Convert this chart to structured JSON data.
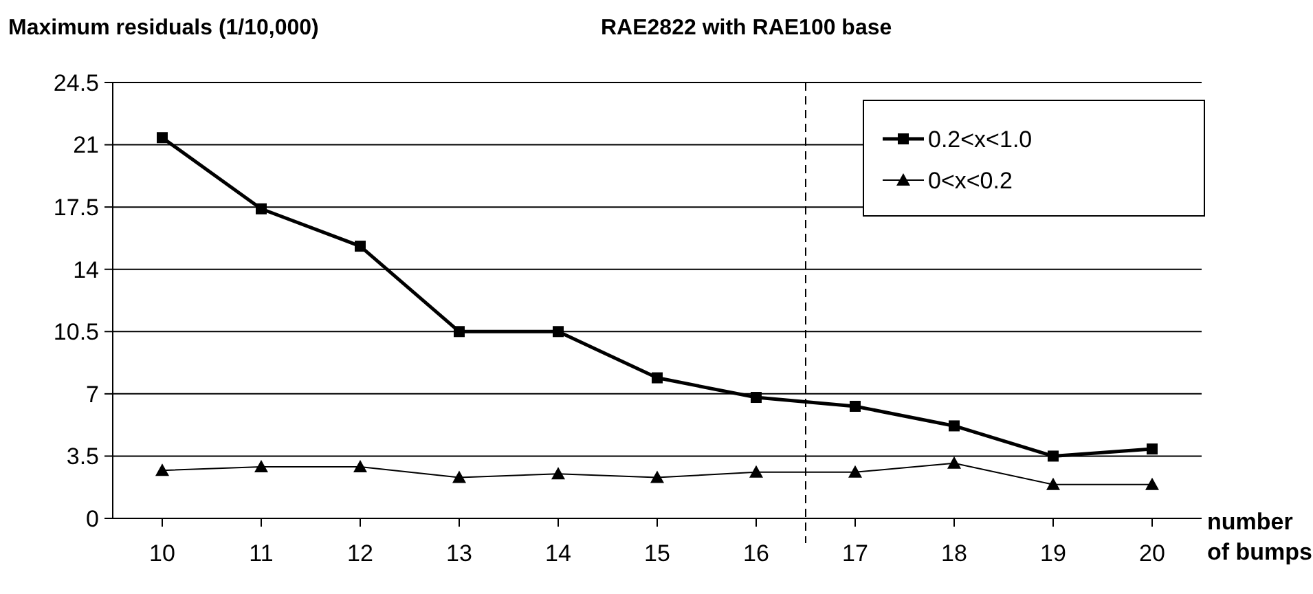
{
  "chart_data": {
    "type": "line",
    "title": "RAE2822 with RAE100 base",
    "ylabel": "Maximum residuals (1/10,000)",
    "xlabel": "number\nof bumps",
    "x": [
      10,
      11,
      12,
      13,
      14,
      15,
      16,
      17,
      18,
      19,
      20
    ],
    "xlim": [
      9.5,
      20.5
    ],
    "xticks": [
      10,
      11,
      12,
      13,
      14,
      15,
      16,
      17,
      18,
      19,
      20
    ],
    "ylim": [
      0,
      24.5
    ],
    "yticks": [
      0,
      3.5,
      7,
      10.5,
      14,
      17.5,
      21,
      24.5
    ],
    "grid": "y",
    "legend": "top right",
    "line_style": "solid",
    "series": [
      {
        "name": "0.2<x<1.0",
        "color": "#000000",
        "marker": "square",
        "values": [
          21.4,
          17.4,
          15.3,
          10.5,
          10.5,
          7.9,
          6.8,
          6.3,
          5.2,
          3.5,
          3.9
        ]
      },
      {
        "name": "0<x<0.2",
        "color": "#000000",
        "marker": "triangle",
        "values": [
          2.7,
          2.9,
          2.9,
          2.3,
          2.5,
          2.3,
          2.6,
          2.6,
          3.1,
          1.9,
          1.9
        ]
      }
    ],
    "ref_lines": [
      {
        "axis": "x",
        "value": 16.5,
        "line_style": "dashed",
        "color": "#000000"
      }
    ]
  }
}
